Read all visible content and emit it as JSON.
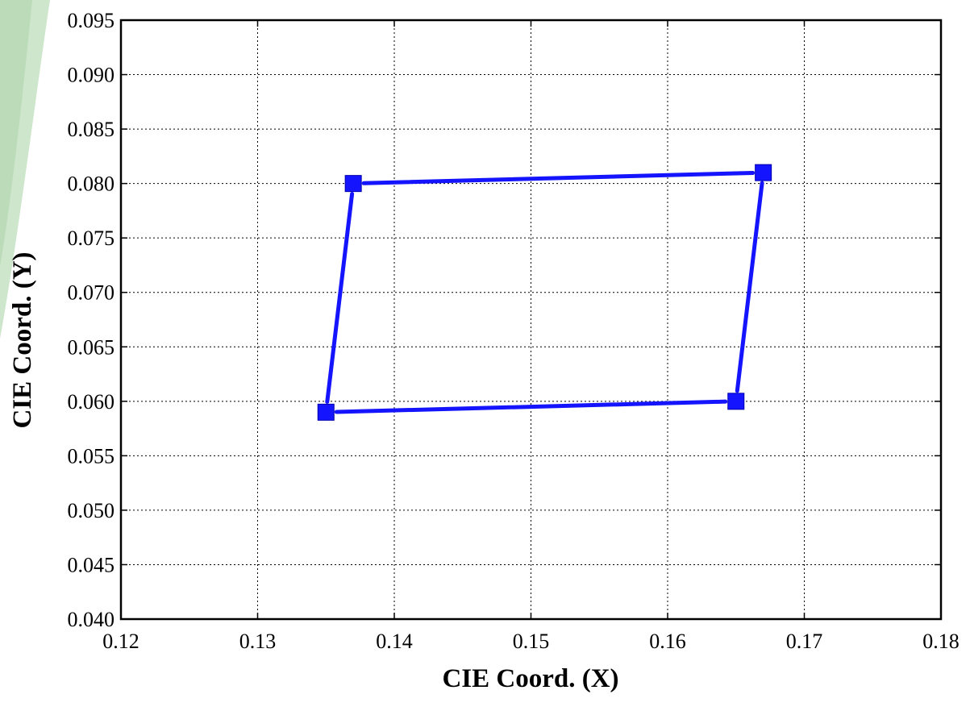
{
  "chart_data": {
    "type": "scatter",
    "title": "",
    "xlabel": "CIE Coord. (X)",
    "ylabel": "CIE Coord. (Y)",
    "xlim": [
      0.12,
      0.18
    ],
    "ylim": [
      0.04,
      0.095
    ],
    "x_ticks": [
      "0.12",
      "0.13",
      "0.14",
      "0.15",
      "0.16",
      "0.17",
      "0.18"
    ],
    "y_ticks": [
      "0.040",
      "0.045",
      "0.050",
      "0.055",
      "0.060",
      "0.065",
      "0.070",
      "0.075",
      "0.080",
      "0.085",
      "0.090",
      "0.095"
    ],
    "grid": true,
    "series": [
      {
        "color": "#1414ff",
        "marker": "square",
        "closed": true,
        "points": [
          {
            "x": 0.137,
            "y": 0.08
          },
          {
            "x": 0.167,
            "y": 0.081
          },
          {
            "x": 0.165,
            "y": 0.06
          },
          {
            "x": 0.135,
            "y": 0.059
          }
        ]
      }
    ]
  }
}
